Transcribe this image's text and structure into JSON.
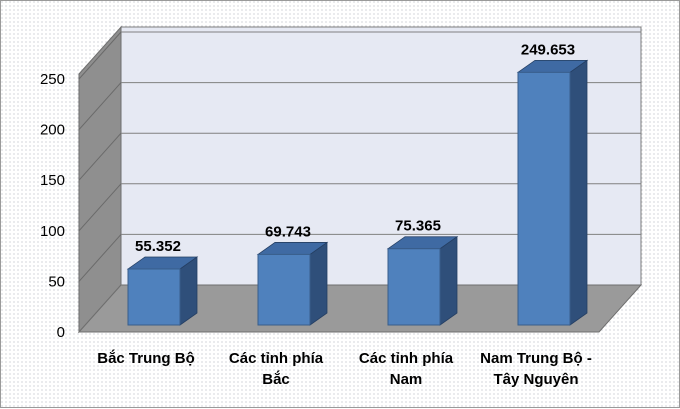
{
  "chart_data": {
    "type": "bar",
    "categories": [
      [
        "Bắc Trung Bộ"
      ],
      [
        "Các tỉnh phía",
        "Bắc"
      ],
      [
        "Các tỉnh phía",
        "Nam"
      ],
      [
        "Nam Trung Bộ -",
        "Tây Nguyên"
      ]
    ],
    "values": [
      55.352,
      69.743,
      75.365,
      249.653
    ],
    "value_labels": [
      "55.352",
      "69.743",
      "75.365",
      "249.653"
    ],
    "yticks": [
      "0",
      "50",
      "100",
      "150",
      "200",
      "250"
    ],
    "ylim": [
      0,
      250
    ],
    "title": "",
    "xlabel": "",
    "ylabel": "",
    "grid": true,
    "legend": "none",
    "style": "3d-column",
    "colors": {
      "bar_front": "#4f81bd",
      "bar_side": "#2f4f7a",
      "bar_top": "#3f6aa3",
      "back_wall": "#e6e9f3",
      "side_wall": "#8f8f8f",
      "floor": "#9a9a9a",
      "gridline": "#808080"
    }
  }
}
